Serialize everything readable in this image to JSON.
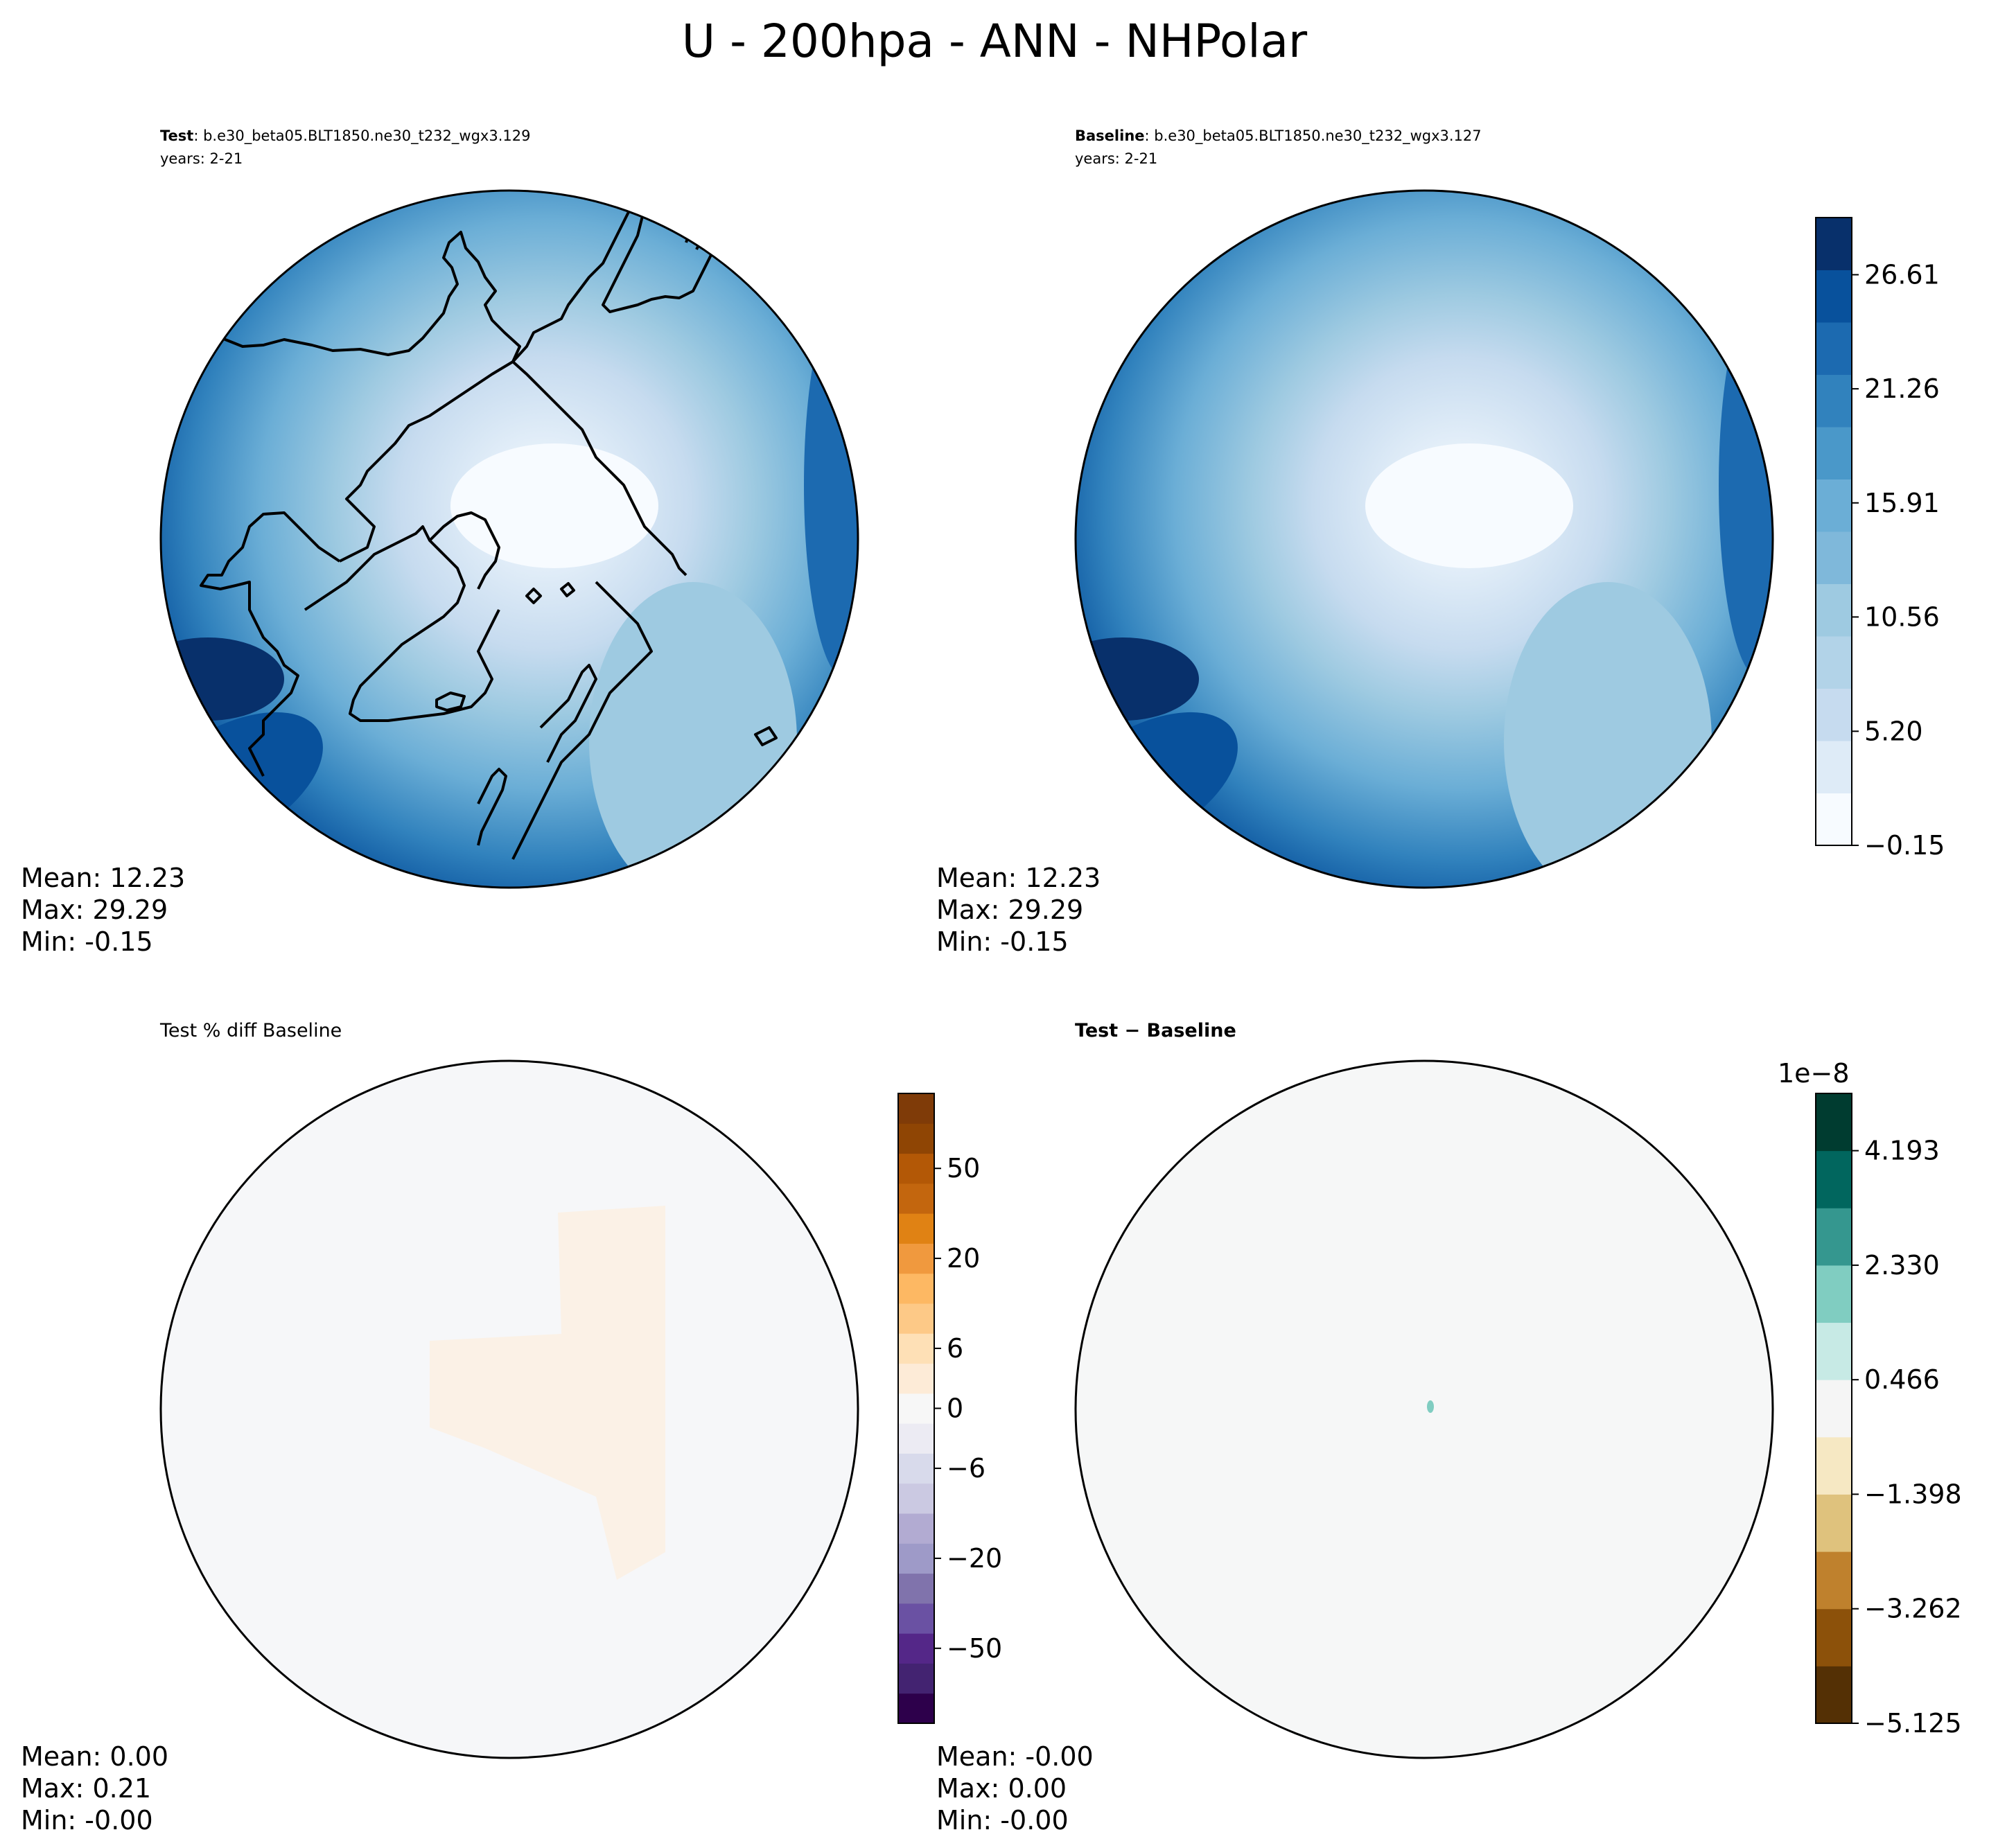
{
  "figure": {
    "title": "U - 200hpa - ANN - NHPolar"
  },
  "colors": {
    "blues": [
      "#f7fbff",
      "#deebf7",
      "#c6dbef",
      "#b2d3e8",
      "#9ecae1",
      "#7fb8da",
      "#6baed6",
      "#4a98c9",
      "#3182bd",
      "#1c6ab0",
      "#08519c",
      "#08306b"
    ],
    "pct": [
      "#2d004b",
      "#432371",
      "#542788",
      "#6a51a3",
      "#8073ac",
      "#9e9ac8",
      "#b2abd2",
      "#cbc9e2",
      "#d8daeb",
      "#ecebf3",
      "#f7f7f7",
      "#fdebd7",
      "#fee0b6",
      "#fdc987",
      "#fdb863",
      "#f0993e",
      "#e08214",
      "#c3660e",
      "#b35806",
      "#8f4504",
      "#7f3b08"
    ],
    "diff": [
      "#543005",
      "#8c510a",
      "#bf812d",
      "#dfc27d",
      "#f6e8c3",
      "#f5f5f5",
      "#c7eae5",
      "#80cdc1",
      "#35978f",
      "#01665e",
      "#003c30"
    ]
  },
  "panels": [
    {
      "id": "test",
      "header_bold": "Test",
      "header_rest": ": b.e30_beta05.BLT1850.ne30_t232_wgx3.129",
      "subheader": "years: 2-21",
      "stats": {
        "mean": "Mean: 12.23",
        "max": "Max: 29.29",
        "min": "Min: -0.15"
      }
    },
    {
      "id": "baseline",
      "header_bold": "Baseline",
      "header_rest": ": b.e30_beta05.BLT1850.ne30_t232_wgx3.127",
      "subheader": "years: 2-21",
      "stats": {
        "mean": "Mean: 12.23",
        "max": "Max: 29.29",
        "min": "Min: -0.15"
      }
    },
    {
      "id": "pctdiff",
      "header": "Test % diff Baseline",
      "stats": {
        "mean": "Mean:  0.00",
        "max": "Max:  0.21",
        "min": "Min: -0.00"
      }
    },
    {
      "id": "diff",
      "header": "Test − Baseline",
      "stats": {
        "mean": "Mean: -0.00",
        "max": "Max:  0.00",
        "min": "Min: -0.00"
      }
    }
  ],
  "colorbars": {
    "field": {
      "ticks": [
        "26.61",
        "21.26",
        "15.91",
        "10.56",
        "5.20",
        "−0.15"
      ],
      "tick_values": [
        26.61,
        21.26,
        15.91,
        10.56,
        5.2,
        -0.15
      ],
      "range": [
        -0.15,
        29.29
      ]
    },
    "pct": {
      "ticks": [
        "50",
        "20",
        "6",
        "0",
        "−6",
        "−20",
        "−50"
      ]
    },
    "diff": {
      "offset_label": "1e−8",
      "ticks": [
        "4.193",
        "2.330",
        "0.466",
        "−1.398",
        "−3.262",
        "−5.125"
      ]
    }
  }
}
